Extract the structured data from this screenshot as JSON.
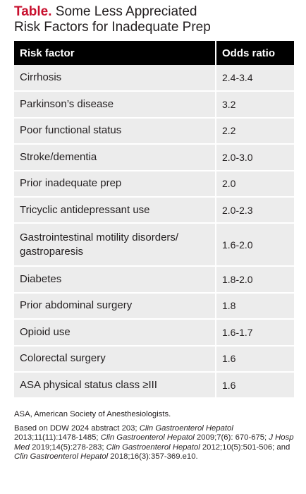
{
  "title": {
    "label": "Table.",
    "text_line1": "Some Less Appreciated",
    "text_line2": "Risk Factors for Inadequate Prep"
  },
  "table": {
    "headers": [
      "Risk factor",
      "Odds ratio"
    ],
    "rows": [
      {
        "factor": "Cirrhosis",
        "odds": "2.4-3.4"
      },
      {
        "factor": "Parkinson’s disease",
        "odds": "3.2"
      },
      {
        "factor": "Poor functional status",
        "odds": "2.2"
      },
      {
        "factor": "Stroke/dementia",
        "odds": "2.0-3.0"
      },
      {
        "factor": "Prior inadequate prep",
        "odds": "2.0"
      },
      {
        "factor": "Tricyclic antidepressant use",
        "odds": "2.0-2.3"
      },
      {
        "factor_line1": "Gastrointestinal motility disorders/",
        "factor_line2": "gastroparesis",
        "odds": "1.6-2.0"
      },
      {
        "factor": "Diabetes",
        "odds": "1.8-2.0"
      },
      {
        "factor": "Prior abdominal surgery",
        "odds": "1.8"
      },
      {
        "factor": "Opioid use",
        "odds": "1.6-1.7"
      },
      {
        "factor": "Colorectal surgery",
        "odds": "1.6"
      },
      {
        "factor": "ASA physical status class ≥III",
        "odds": "1.6"
      }
    ]
  },
  "notes": {
    "abbreviation": "ASA, American Society of Anesthesiologists.",
    "refs": {
      "p1": "Based on DDW 2024 abstract 203; ",
      "j1": "Clin Gastroenterol Hepatol",
      "p2": " 2013;11(11):1478-1485; ",
      "j2": "Clin Gastroenterol Hepatol",
      "p3": " 2009;7(6): 670-675; ",
      "j3": "J Hosp Med",
      "p4": " 2019;14(5):278-283; ",
      "j4": "Clin Gastroenterol Hepatol",
      "p5": " 2012;10(5):501-506; and ",
      "j5": "Clin Gastroenterol Hepatol",
      "p6": " 2018;16(3):357-369.e10."
    }
  },
  "colors": {
    "title_label": "#c8102e",
    "header_bg": "#000000",
    "row_bg": "#ececec"
  }
}
